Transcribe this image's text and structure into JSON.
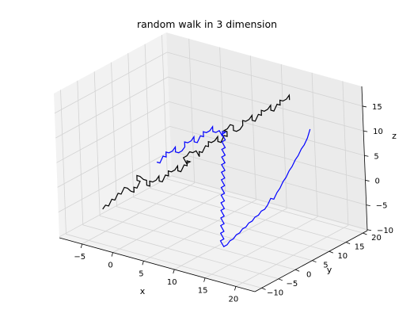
{
  "chart_data": {
    "type": "line",
    "projection": "3d",
    "title": "random walk in 3 dimension",
    "xlabel": "x",
    "ylabel": "y",
    "zlabel": "z",
    "xlim": [
      -8.7,
      23.1
    ],
    "ylim": [
      -12.0,
      21.3
    ],
    "zlim": [
      -10.2,
      19.0
    ],
    "xticks": [
      "−5",
      "0",
      "5",
      "10",
      "15",
      "20"
    ],
    "yticks": [
      "−10",
      "−5",
      "0",
      "5",
      "10",
      "15",
      "20"
    ],
    "zticks": [
      "−10",
      "−5",
      "0",
      "5",
      "10",
      "15"
    ],
    "grid": true,
    "series": [
      {
        "color": "#000000",
        "points": [
          [
            -6.5,
            -3,
            -7
          ],
          [
            -6,
            -3,
            -6
          ],
          [
            -5.5,
            -3,
            -6
          ],
          [
            -5.5,
            -2,
            -5
          ],
          [
            -5,
            -2,
            -5
          ],
          [
            -5,
            -1,
            -4
          ],
          [
            -4.5,
            -1,
            -4
          ],
          [
            -4.5,
            0,
            -3
          ],
          [
            -4,
            0,
            -3
          ],
          [
            -4,
            1,
            -4
          ],
          [
            -3.5,
            1,
            -4
          ],
          [
            -3.5,
            1,
            -3
          ],
          [
            -3,
            1,
            -3
          ],
          [
            -3,
            2,
            -2
          ],
          [
            -3.5,
            2,
            -2
          ],
          [
            -3.5,
            2,
            -1
          ],
          [
            -3,
            2,
            -1
          ],
          [
            -3,
            3,
            -2
          ],
          [
            -2.5,
            3,
            -2
          ],
          [
            -2.5,
            3,
            -3
          ],
          [
            -2,
            3,
            -3
          ],
          [
            -2,
            3,
            -2
          ],
          [
            -1.5,
            3,
            -2
          ],
          [
            -1.5,
            4,
            -2
          ],
          [
            -1,
            4,
            -1
          ],
          [
            -1,
            4,
            -2
          ],
          [
            -0.5,
            4,
            -2
          ],
          [
            -0.5,
            5,
            -1
          ],
          [
            0,
            5,
            -1
          ],
          [
            0,
            5,
            0
          ],
          [
            0.5,
            5,
            0
          ],
          [
            0.5,
            6,
            0
          ],
          [
            1,
            6,
            1
          ],
          [
            1,
            6,
            0
          ],
          [
            1.5,
            6,
            0
          ],
          [
            1.5,
            7,
            1
          ],
          [
            2,
            7,
            1
          ],
          [
            2,
            7,
            2
          ],
          [
            2.5,
            7,
            2
          ],
          [
            2.5,
            6,
            2
          ],
          [
            2,
            6,
            3
          ],
          [
            2,
            7,
            3
          ],
          [
            2.5,
            7,
            4
          ],
          [
            3,
            7,
            4
          ],
          [
            3,
            8,
            4
          ],
          [
            3.5,
            8,
            3
          ],
          [
            3.5,
            8,
            4
          ],
          [
            4,
            8,
            4
          ],
          [
            4,
            9,
            5
          ],
          [
            4.5,
            9,
            5
          ],
          [
            4.5,
            9,
            6
          ],
          [
            5,
            9,
            6
          ],
          [
            5,
            10,
            6
          ],
          [
            5.5,
            10,
            7
          ],
          [
            5.5,
            10,
            6
          ],
          [
            6,
            10,
            6
          ],
          [
            6,
            11,
            7
          ],
          [
            6.5,
            11,
            7
          ],
          [
            6.5,
            11,
            8
          ],
          [
            6,
            11,
            8
          ],
          [
            6,
            12,
            8
          ],
          [
            6.5,
            12,
            9
          ],
          [
            7,
            12,
            9
          ],
          [
            7,
            12,
            8
          ],
          [
            7.5,
            12,
            8
          ],
          [
            7.5,
            13,
            8
          ],
          [
            8,
            13,
            9
          ],
          [
            8,
            13,
            10
          ],
          [
            8.5,
            13,
            10
          ],
          [
            8.5,
            14,
            10
          ],
          [
            9,
            14,
            11
          ],
          [
            9,
            14,
            10
          ],
          [
            9.5,
            14,
            10
          ],
          [
            9.5,
            15,
            11
          ],
          [
            10,
            15,
            11
          ],
          [
            10,
            15,
            12
          ],
          [
            10.5,
            15,
            12
          ],
          [
            10.5,
            16,
            12
          ],
          [
            11,
            16,
            13
          ],
          [
            11,
            16,
            12
          ],
          [
            11.5,
            16,
            12
          ],
          [
            11.5,
            17,
            13
          ],
          [
            12,
            17,
            13
          ],
          [
            12,
            17,
            14
          ],
          [
            12.5,
            17,
            14
          ],
          [
            12.5,
            18,
            14
          ],
          [
            13,
            18,
            15
          ],
          [
            13,
            18,
            14
          ]
        ]
      },
      {
        "color": "#0000ff",
        "points": [
          [
            1,
            0,
            4
          ],
          [
            1.5,
            0,
            4
          ],
          [
            1.5,
            1,
            5
          ],
          [
            2,
            1,
            5
          ],
          [
            2,
            1,
            6
          ],
          [
            2.5,
            1,
            6
          ],
          [
            2.5,
            2,
            6
          ],
          [
            3,
            2,
            7
          ],
          [
            3,
            2,
            6
          ],
          [
            3.5,
            2,
            6
          ],
          [
            3.5,
            3,
            6
          ],
          [
            4,
            3,
            7
          ],
          [
            4,
            3,
            8
          ],
          [
            4.5,
            3,
            8
          ],
          [
            4.5,
            4,
            8
          ],
          [
            5,
            4,
            9
          ],
          [
            5,
            4,
            8
          ],
          [
            5.5,
            4,
            8
          ],
          [
            5.5,
            5,
            9
          ],
          [
            6,
            5,
            9
          ],
          [
            6,
            5,
            10
          ],
          [
            6.5,
            5,
            10
          ],
          [
            6.5,
            6,
            10
          ],
          [
            7,
            6,
            11
          ],
          [
            7,
            6,
            10
          ],
          [
            7.5,
            6,
            10
          ],
          [
            7.5,
            7,
            10
          ],
          [
            8,
            7,
            9
          ],
          [
            8,
            7,
            10
          ],
          [
            8.5,
            7,
            10
          ],
          [
            8.5,
            6,
            10
          ],
          [
            9,
            6,
            9
          ],
          [
            9,
            5,
            9
          ],
          [
            9.5,
            5,
            8
          ],
          [
            9.5,
            4,
            8
          ],
          [
            10,
            4,
            7
          ],
          [
            10,
            3,
            7
          ],
          [
            10.5,
            3,
            6
          ],
          [
            10.5,
            2,
            6
          ],
          [
            11,
            2,
            5
          ],
          [
            11,
            1,
            5
          ],
          [
            11.5,
            1,
            4
          ],
          [
            11.5,
            0,
            4
          ],
          [
            12,
            0,
            3
          ],
          [
            12,
            -1,
            3
          ],
          [
            12.5,
            -1,
            2
          ],
          [
            12.5,
            -2,
            2
          ],
          [
            13,
            -2,
            1
          ],
          [
            13,
            -3,
            1
          ],
          [
            13.5,
            -3,
            0
          ],
          [
            13.5,
            -4,
            0
          ],
          [
            14,
            -4,
            -1
          ],
          [
            14,
            -5,
            -1
          ],
          [
            14.5,
            -5,
            -2
          ],
          [
            14.5,
            -6,
            -2
          ],
          [
            15,
            -6,
            -3
          ],
          [
            15,
            -7,
            -3
          ],
          [
            15.5,
            -7,
            -4
          ],
          [
            15.5,
            -8,
            -4
          ],
          [
            16,
            -8,
            -5
          ],
          [
            16,
            -7,
            -5
          ],
          [
            16.5,
            -7,
            -4
          ],
          [
            16.5,
            -6,
            -4
          ],
          [
            17,
            -6,
            -3
          ],
          [
            17,
            -5,
            -3
          ],
          [
            17.5,
            -5,
            -2
          ],
          [
            17.5,
            -4,
            -2
          ],
          [
            18,
            -4,
            -1
          ],
          [
            18,
            -3,
            -1
          ],
          [
            18.5,
            -3,
            0
          ],
          [
            18.5,
            -2,
            0
          ],
          [
            19,
            -2,
            1
          ],
          [
            19,
            -1,
            1
          ],
          [
            19.5,
            -1,
            2
          ],
          [
            19.5,
            0,
            3
          ],
          [
            20,
            0,
            3
          ],
          [
            20,
            1,
            4
          ],
          [
            20.5,
            1,
            5
          ],
          [
            20.5,
            2,
            6
          ],
          [
            21,
            2,
            7
          ],
          [
            21,
            3,
            8
          ],
          [
            21.5,
            3,
            9
          ],
          [
            21.5,
            4,
            10
          ],
          [
            22,
            4,
            11
          ],
          [
            22,
            5,
            12
          ],
          [
            22.5,
            5,
            13
          ],
          [
            22.5,
            6,
            14
          ],
          [
            23,
            6,
            16
          ]
        ]
      }
    ]
  }
}
